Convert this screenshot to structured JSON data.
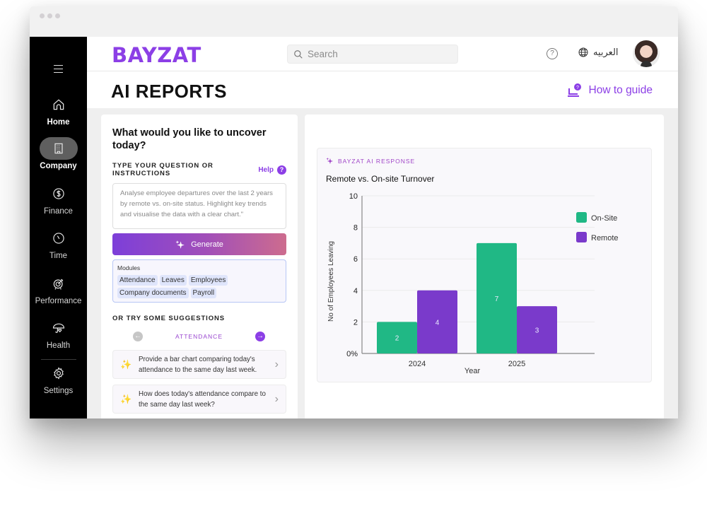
{
  "window": {
    "controls": [
      "close",
      "minimize",
      "maximize"
    ]
  },
  "sidebar": {
    "menu_icon": "hamburger-icon",
    "items": [
      {
        "label": "Home",
        "icon": "home-icon",
        "active": false
      },
      {
        "label": "Company",
        "icon": "building-icon",
        "active": true
      },
      {
        "label": "Finance",
        "icon": "dollar-circle-icon",
        "active": false
      },
      {
        "label": "Time",
        "icon": "clock-icon",
        "active": false
      },
      {
        "label": "Performance",
        "icon": "target-icon",
        "active": false
      },
      {
        "label": "Health",
        "icon": "umbrella-heart-icon",
        "active": false
      },
      {
        "label": "Settings",
        "icon": "gear-icon",
        "active": false
      }
    ]
  },
  "topbar": {
    "logo": "BAYZAT",
    "search": {
      "placeholder": "Search",
      "value": ""
    },
    "language": "العربيه",
    "help_icon": "?"
  },
  "page": {
    "title": "AI REPORTS",
    "how_to_guide": "How to guide"
  },
  "left_panel": {
    "heading": "What would you like to uncover today?",
    "instructions_label": "TYPE YOUR QUESTION OR INSTRUCTIONS",
    "help_label": "Help",
    "help_icon": "?",
    "prompt_text": "Analyse employee departures over the last 2 years by remote vs. on-site status. Highlight key trends and visualise the data with a clear chart.\"",
    "generate_label": "Generate",
    "modules_label": "Modules",
    "modules": [
      "Attendance",
      "Leaves",
      "Employees",
      "Company documents",
      "Payroll"
    ],
    "suggestions_label": "OR TRY SOME SUGGESTIONS",
    "suggestion_category": "ATTENDANCE",
    "prev_icon": "←",
    "next_icon": "→",
    "suggestions": [
      "Provide a bar chart comparing today's attendance to the same day last week.",
      "How does today's attendance compare to the same day last week?"
    ]
  },
  "ai_response": {
    "label": "BAYZAT AI RESPONSE"
  },
  "colors": {
    "brand": "#8c3fe6",
    "on_site": "#20b885",
    "remote": "#7a3acb",
    "sidebar_bg": "#000000"
  },
  "chart_data": {
    "type": "bar",
    "title": "Remote vs. On-site Turnover",
    "xlabel": "Year",
    "ylabel": "No of Employees Leaving",
    "categories": [
      "2024",
      "2025"
    ],
    "series": [
      {
        "name": "On-Site",
        "values": [
          2,
          7
        ],
        "color": "#20b885"
      },
      {
        "name": "Remote",
        "values": [
          4,
          3
        ],
        "color": "#7a3acb"
      }
    ],
    "ylim": [
      0,
      10
    ],
    "yticks": [
      "0%",
      "2",
      "4",
      "6",
      "8",
      "10"
    ],
    "grid": true,
    "legend_position": "right",
    "data_labels": true
  }
}
